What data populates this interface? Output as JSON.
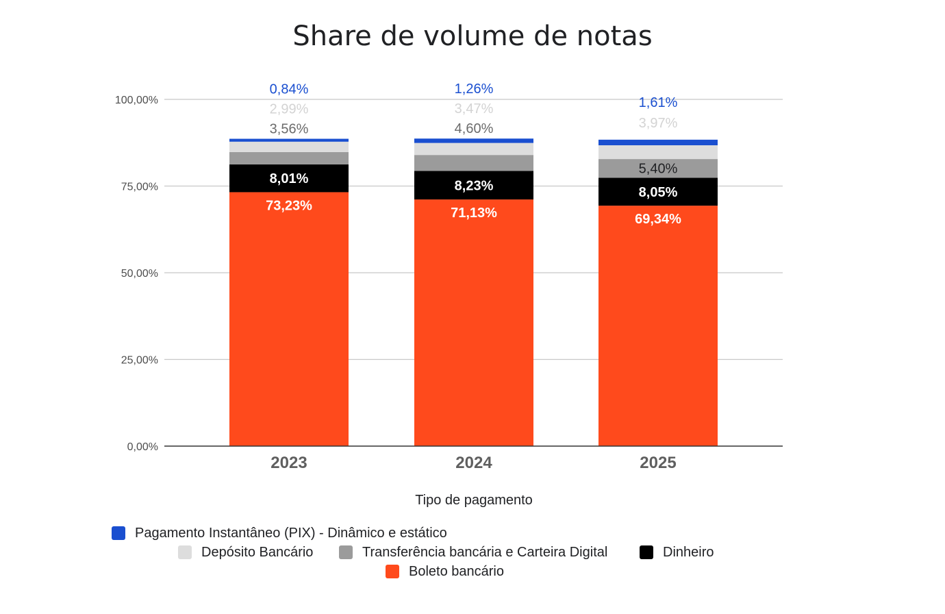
{
  "chart_data": {
    "type": "stacked-bar",
    "title": "Share de volume de notas",
    "xlabel": "Tipo de pagamento",
    "ylabel": "",
    "ylim": [
      0,
      100
    ],
    "yticks": [
      "0,00%",
      "25,00%",
      "50,00%",
      "75,00%",
      "100,00%"
    ],
    "ytick_values": [
      0,
      25,
      50,
      75,
      100
    ],
    "categories": [
      "2023",
      "2024",
      "2025"
    ],
    "series": [
      {
        "name": "Boleto bancário",
        "color": "#ff4a1c",
        "values": [
          73.23,
          71.13,
          69.34
        ],
        "labels": [
          "73,23%",
          "71,13%",
          "69,34%"
        ],
        "label_color": "#ffffff"
      },
      {
        "name": "Dinheiro",
        "color": "#000000",
        "values": [
          8.01,
          8.23,
          8.05
        ],
        "labels": [
          "8,01%",
          "8,23%",
          "8,05%"
        ],
        "label_color": "#ffffff"
      },
      {
        "name": "Transferência bancária e Carteira Digital",
        "color": "#9b9b9b",
        "values": [
          3.56,
          4.6,
          5.4
        ],
        "labels": [
          "3,56%",
          "4,60%",
          "5,40%"
        ],
        "label_color": "#6b6b6b"
      },
      {
        "name": "Depósito Bancário",
        "color": "#dddddd",
        "values": [
          2.99,
          3.47,
          3.97
        ],
        "labels": [
          "2,99%",
          "3,47%",
          "3,97%"
        ],
        "label_color": "#d3d3d3"
      },
      {
        "name": "Pagamento Instantâneo (PIX) - Dinâmico e estático",
        "color": "#1a4fd0",
        "values": [
          0.84,
          1.26,
          1.61
        ],
        "labels": [
          "0,84%",
          "1,26%",
          "1,61%"
        ],
        "label_color": "#1a4fd0"
      }
    ],
    "legend": {
      "position": "bottom",
      "rows": [
        [
          "Pagamento Instantâneo (PIX) - Dinâmico e estático"
        ],
        [
          "Depósito Bancário",
          "Transferência bancária e Carteira Digital",
          "Dinheiro"
        ],
        [
          "Boleto bancário"
        ]
      ]
    },
    "grid": true
  }
}
